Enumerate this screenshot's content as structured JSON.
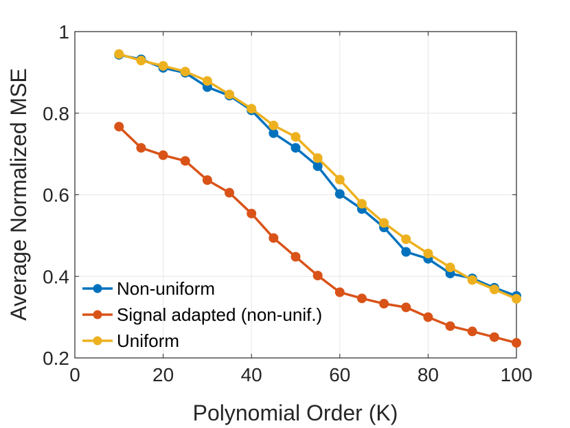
{
  "chart_data": {
    "type": "line",
    "title": "",
    "xlabel": "Polynomial Order (K)",
    "ylabel": "Average Normalized MSE",
    "xlim": [
      0,
      100
    ],
    "ylim": [
      0.2,
      1.0
    ],
    "grid": true,
    "legend_location": "bottom-left",
    "x_ticks": [
      0,
      20,
      40,
      60,
      80,
      100
    ],
    "x_tick_labels": [
      "0",
      "20",
      "40",
      "60",
      "80",
      "100"
    ],
    "y_ticks": [
      0.2,
      0.4,
      0.6,
      0.8,
      1.0
    ],
    "y_tick_labels": [
      "0.2",
      "0.4",
      "0.6",
      "0.8",
      "1"
    ],
    "x": [
      10,
      15,
      20,
      25,
      30,
      35,
      40,
      45,
      50,
      55,
      60,
      65,
      70,
      75,
      80,
      85,
      90,
      95,
      100
    ],
    "series": [
      {
        "name": "Non-uniform",
        "color": "#0072bd",
        "values": [
          0.943,
          0.932,
          0.911,
          0.899,
          0.864,
          0.843,
          0.807,
          0.751,
          0.715,
          0.67,
          0.602,
          0.565,
          0.52,
          0.46,
          0.443,
          0.407,
          0.395,
          0.372,
          0.352
        ]
      },
      {
        "name": "Signal adapted (non-unif.)",
        "color": "#d95319",
        "values": [
          0.767,
          0.715,
          0.697,
          0.683,
          0.636,
          0.605,
          0.554,
          0.494,
          0.448,
          0.402,
          0.361,
          0.346,
          0.333,
          0.324,
          0.3,
          0.278,
          0.265,
          0.251,
          0.237
        ]
      },
      {
        "name": "Uniform",
        "color": "#edb120",
        "values": [
          0.945,
          0.929,
          0.916,
          0.902,
          0.879,
          0.846,
          0.811,
          0.77,
          0.742,
          0.69,
          0.637,
          0.578,
          0.531,
          0.491,
          0.456,
          0.422,
          0.391,
          0.368,
          0.345
        ]
      }
    ]
  }
}
